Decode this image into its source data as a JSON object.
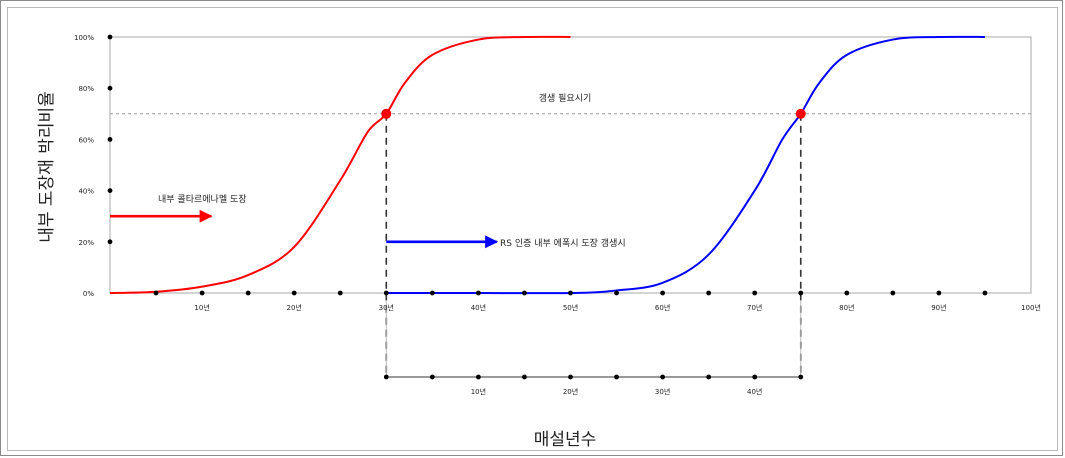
{
  "chart_data": {
    "type": "line",
    "xlabel": "매설년수",
    "ylabel": "내부 도장재 박리비율",
    "x_ticks": [
      "10년",
      "20년",
      "30년",
      "40년",
      "50년",
      "60년",
      "70년",
      "80년",
      "90년",
      "100년"
    ],
    "y_ticks": [
      "100%",
      "80%",
      "60%",
      "40%",
      "20%",
      "0%"
    ],
    "xlim": [
      0,
      100
    ],
    "ylim": [
      0,
      100
    ],
    "threshold": {
      "y": 70,
      "label": "갱생 필요시기"
    },
    "series": [
      {
        "color": "#ff0000",
        "x": [
          0,
          5,
          10,
          15,
          20,
          25,
          28,
          30,
          32,
          35,
          40,
          45,
          50
        ],
        "y": [
          0,
          0.5,
          2.5,
          7,
          18,
          44,
          63,
          70,
          82,
          93,
          99,
          100,
          100
        ]
      },
      {
        "color": "#0000ff",
        "x": [
          30,
          40,
          50,
          55,
          60,
          65,
          70,
          73,
          75,
          77,
          80,
          85,
          90,
          95
        ],
        "y": [
          0,
          0,
          0,
          1,
          4,
          15,
          40,
          60,
          70,
          82,
          93,
          99,
          100,
          100
        ]
      }
    ],
    "markers": [
      {
        "x": 30,
        "y": 70,
        "color": "#ff0000"
      },
      {
        "x": 75,
        "y": 70,
        "color": "#ff0000"
      }
    ],
    "secondary_axis": {
      "start": 30,
      "ticks": [
        "10년",
        "20년",
        "30년",
        "40년"
      ]
    },
    "annotations": [
      {
        "text": "내부 콜타르에나멜 도장",
        "arrow_color": "#ff0000",
        "arrow_from_x": 0,
        "arrow_to_x": 11,
        "arrow_y": 30
      },
      {
        "text": "RS 인증 내부 에폭시 도장 갱생시",
        "arrow_color": "#0000ff",
        "arrow_from_x": 30,
        "arrow_to_x": 42,
        "arrow_y": 20
      }
    ]
  }
}
